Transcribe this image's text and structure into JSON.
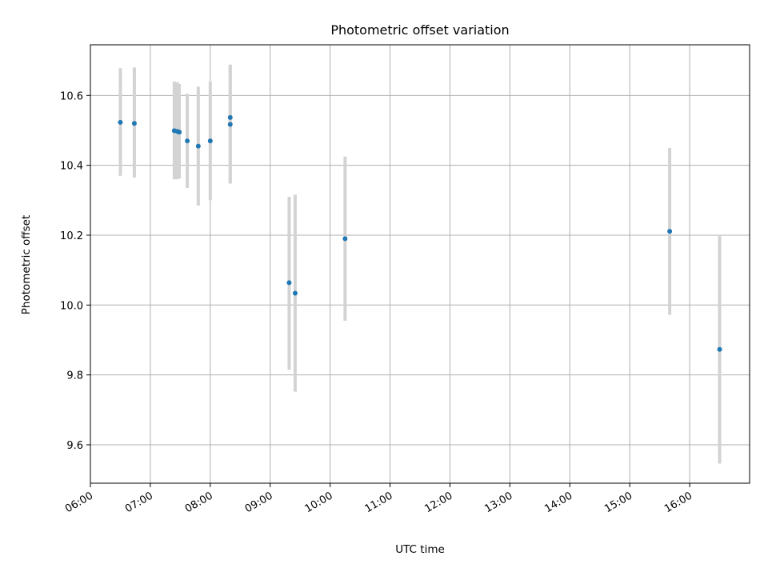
{
  "chart_data": {
    "type": "scatter",
    "title": "Photometric offset variation",
    "xlabel": "UTC time",
    "ylabel": "Photometric offset",
    "xlim": [
      "06:00",
      "17:00"
    ],
    "ylim": [
      9.49,
      10.745
    ],
    "x_ticks": [
      "06:00",
      "07:00",
      "08:00",
      "09:00",
      "10:00",
      "11:00",
      "12:00",
      "13:00",
      "14:00",
      "15:00",
      "16:00"
    ],
    "y_ticks": [
      9.6,
      9.8,
      10.0,
      10.2,
      10.4,
      10.6
    ],
    "y_tick_labels": [
      "9.6",
      "9.8",
      "10.0",
      "10.2",
      "10.4",
      "10.6"
    ],
    "grid": true,
    "colors": {
      "points": "#1f77b4",
      "errorbars": "#d3d3d3",
      "grid": "#b0b0b0"
    },
    "series": [
      {
        "points": [
          {
            "x": "06:30",
            "y": 10.523,
            "y_low": 10.37,
            "y_high": 10.678
          },
          {
            "x": "06:44",
            "y": 10.52,
            "y_low": 10.365,
            "y_high": 10.68
          },
          {
            "x": "07:24",
            "y": 10.499,
            "y_low": 10.36,
            "y_high": 10.64
          },
          {
            "x": "07:27",
            "y": 10.497,
            "y_low": 10.36,
            "y_high": 10.638
          },
          {
            "x": "07:29",
            "y": 10.495,
            "y_low": 10.362,
            "y_high": 10.633
          },
          {
            "x": "07:37",
            "y": 10.47,
            "y_low": 10.335,
            "y_high": 10.605
          },
          {
            "x": "07:48",
            "y": 10.455,
            "y_low": 10.285,
            "y_high": 10.625
          },
          {
            "x": "08:00",
            "y": 10.47,
            "y_low": 10.3,
            "y_high": 10.64
          },
          {
            "x": "08:20",
            "y": 10.537,
            "y_low": 10.348,
            "y_high": 10.688
          },
          {
            "x": "08:20",
            "y": 10.517,
            "y_low": 10.348,
            "y_high": 10.688
          },
          {
            "x": "09:19",
            "y": 10.064,
            "y_low": 9.815,
            "y_high": 10.31
          },
          {
            "x": "09:25",
            "y": 10.034,
            "y_low": 9.752,
            "y_high": 10.316
          },
          {
            "x": "10:15",
            "y": 10.19,
            "y_low": 9.955,
            "y_high": 10.425
          },
          {
            "x": "15:40",
            "y": 10.211,
            "y_low": 9.972,
            "y_high": 10.45
          },
          {
            "x": "16:30",
            "y": 9.873,
            "y_low": 9.546,
            "y_high": 10.2
          }
        ]
      }
    ]
  }
}
